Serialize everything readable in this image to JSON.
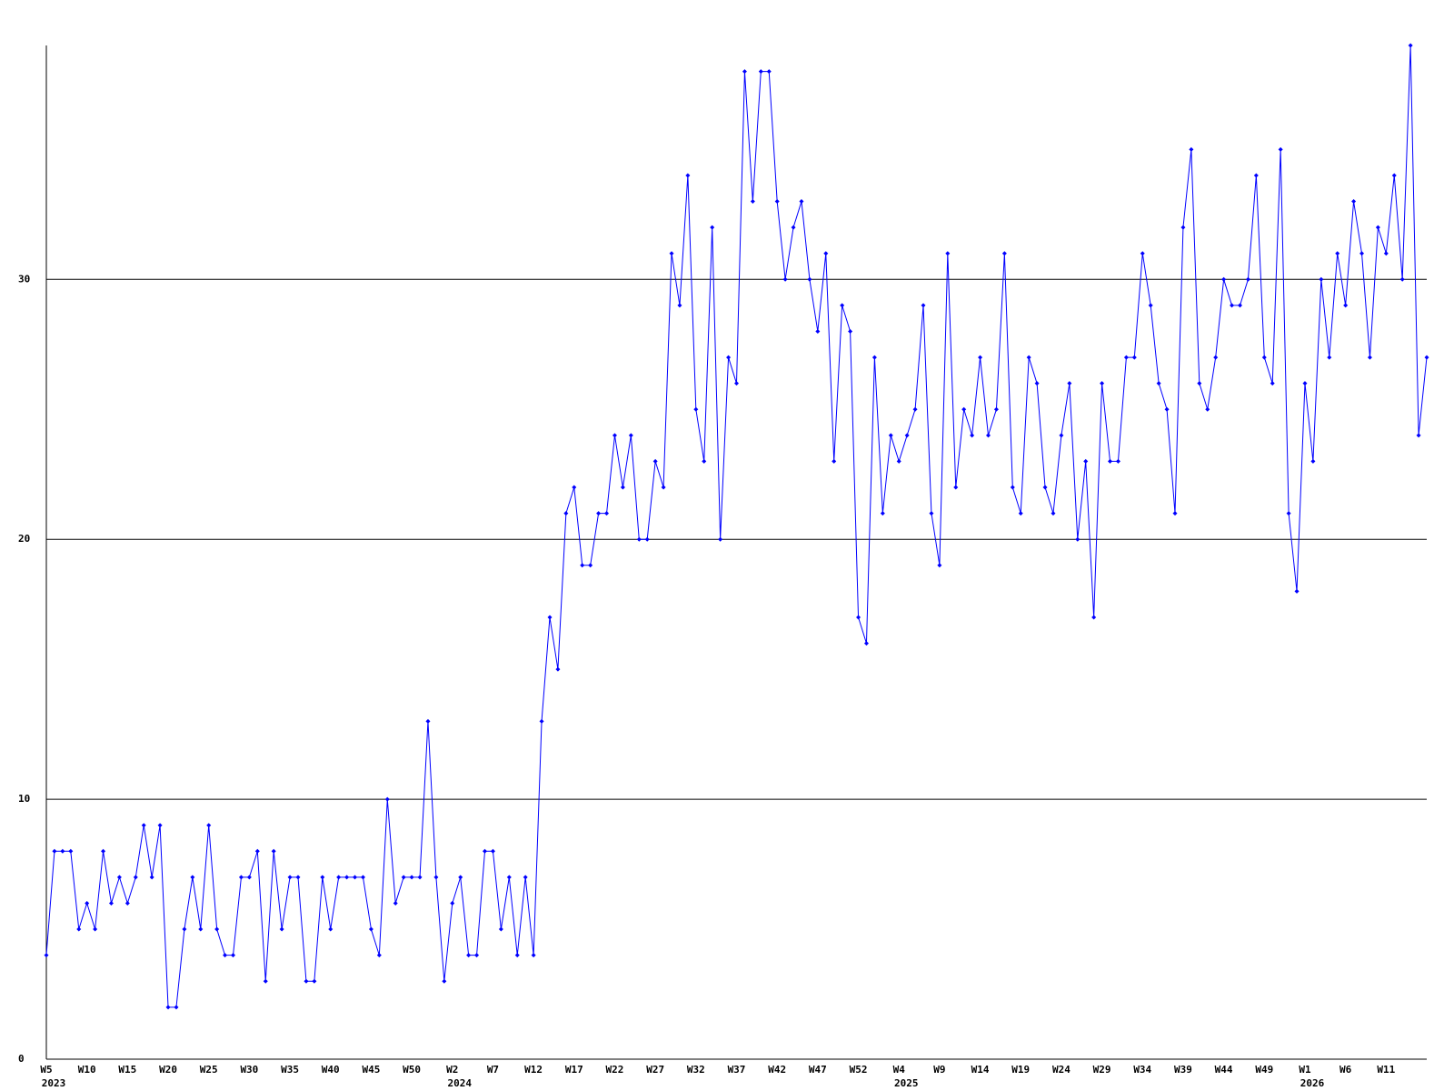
{
  "chart_data": {
    "type": "line",
    "categories": [
      "W5",
      null,
      null,
      null,
      null,
      "W10",
      null,
      null,
      null,
      null,
      "W15",
      null,
      null,
      null,
      null,
      "W20",
      null,
      null,
      null,
      null,
      "W25",
      null,
      null,
      null,
      null,
      "W30",
      null,
      null,
      null,
      null,
      "W35",
      null,
      null,
      null,
      null,
      "W40",
      null,
      null,
      null,
      null,
      "W45",
      null,
      null,
      null,
      null,
      "W50",
      null,
      null,
      null,
      null,
      "W2",
      null,
      null,
      null,
      null,
      "W7",
      null,
      null,
      null,
      null,
      "W12",
      null,
      null,
      null,
      null,
      "W17",
      null,
      null,
      null,
      null,
      "W22",
      null,
      null,
      null,
      null,
      "W27",
      null,
      null,
      null,
      null,
      "W32",
      null,
      null,
      null,
      null,
      "W37",
      null,
      null,
      null,
      null,
      "W42",
      null,
      null,
      null,
      null,
      "W47",
      null,
      null,
      null,
      null,
      "W52",
      null,
      null,
      null,
      null,
      "W4",
      null,
      null,
      null,
      null,
      "W9",
      null,
      null,
      null,
      null,
      "W14",
      null,
      null,
      null,
      null,
      "W19",
      null,
      null,
      null,
      null,
      "W24",
      null,
      null,
      null,
      null,
      "W29",
      null,
      null,
      null,
      null,
      "W34",
      null,
      null,
      null,
      null,
      "W39",
      null,
      null,
      null,
      null,
      "W44",
      null,
      null,
      null,
      null,
      "W49",
      null,
      null,
      null,
      null,
      "W1",
      null,
      null,
      null,
      null,
      "W6",
      null,
      null,
      null,
      null,
      "W11",
      null,
      null,
      null,
      null,
      null
    ],
    "year_labels": [
      "2023",
      null,
      null,
      null,
      null,
      null,
      null,
      null,
      null,
      null,
      null,
      null,
      null,
      null,
      null,
      null,
      null,
      null,
      null,
      null,
      null,
      null,
      null,
      null,
      null,
      null,
      null,
      null,
      null,
      null,
      null,
      null,
      null,
      null,
      null,
      null,
      null,
      null,
      null,
      null,
      null,
      null,
      null,
      null,
      null,
      null,
      null,
      null,
      null,
      null,
      "2024",
      null,
      null,
      null,
      null,
      null,
      null,
      null,
      null,
      null,
      null,
      null,
      null,
      null,
      null,
      null,
      null,
      null,
      null,
      null,
      null,
      null,
      null,
      null,
      null,
      null,
      null,
      null,
      null,
      null,
      null,
      null,
      null,
      null,
      null,
      null,
      null,
      null,
      null,
      null,
      null,
      null,
      null,
      null,
      null,
      null,
      null,
      null,
      null,
      null,
      null,
      null,
      null,
      null,
      null,
      "2025",
      null,
      null,
      null,
      null,
      null,
      null,
      null,
      null,
      null,
      null,
      null,
      null,
      null,
      null,
      null,
      null,
      null,
      null,
      null,
      null,
      null,
      null,
      null,
      null,
      null,
      null,
      null,
      null,
      null,
      null,
      null,
      null,
      null,
      null,
      null,
      null,
      null,
      null,
      null,
      null,
      null,
      null,
      null,
      null,
      null,
      null,
      null,
      null,
      null,
      "2026",
      null,
      null,
      null,
      null,
      null,
      null,
      null,
      null,
      null,
      null,
      null,
      null,
      null,
      null,
      null
    ],
    "values": [
      4,
      8,
      8,
      8,
      5,
      6,
      5,
      8,
      6,
      7,
      6,
      7,
      9,
      7,
      9,
      2,
      2,
      5,
      7,
      5,
      9,
      5,
      4,
      4,
      7,
      7,
      8,
      3,
      8,
      5,
      7,
      7,
      3,
      3,
      7,
      5,
      7,
      7,
      7,
      7,
      5,
      4,
      10,
      6,
      7,
      7,
      7,
      13,
      7,
      3,
      6,
      7,
      4,
      4,
      8,
      8,
      5,
      7,
      4,
      7,
      4,
      13,
      17,
      15,
      21,
      22,
      19,
      19,
      21,
      21,
      24,
      22,
      24,
      20,
      20,
      23,
      22,
      31,
      29,
      34,
      25,
      23,
      32,
      20,
      27,
      26,
      38,
      33,
      38,
      38,
      33,
      30,
      32,
      33,
      30,
      28,
      31,
      23,
      29,
      28,
      17,
      16,
      27,
      21,
      24,
      23,
      24,
      25,
      29,
      21,
      19,
      31,
      22,
      25,
      24,
      27,
      24,
      25,
      31,
      22,
      21,
      27,
      26,
      22,
      21,
      24,
      26,
      20,
      23,
      17,
      26,
      23,
      23,
      27,
      27,
      31,
      29,
      26,
      25,
      21,
      32,
      35,
      26,
      25,
      27,
      30,
      29,
      29,
      30,
      34,
      27,
      26,
      35,
      21,
      18,
      26,
      23,
      30,
      27,
      31,
      29,
      33,
      31,
      27,
      32,
      31,
      34,
      30,
      39,
      24,
      27
    ],
    "color": "#0000ff",
    "ylim": [
      0,
      39
    ],
    "yticks": [
      0,
      10,
      20,
      30
    ],
    "grid": true
  }
}
